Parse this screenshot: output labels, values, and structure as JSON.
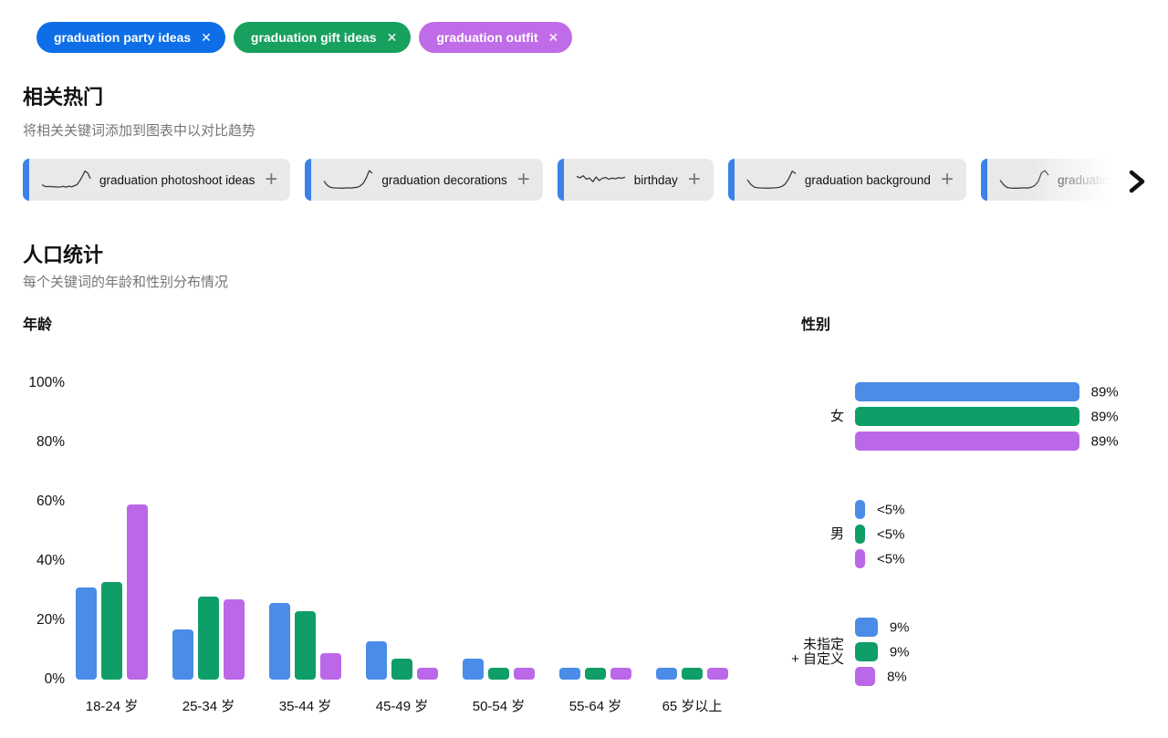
{
  "icons": {
    "close": "✕",
    "add": "+",
    "chevron_right": "chevron-right"
  },
  "colors": {
    "chip_blue": "#0d6ee8",
    "chip_green": "#18a05e",
    "chip_purple": "#c06ce8",
    "series": [
      "#4a8ce8",
      "#0f9e68",
      "#bb68e8"
    ],
    "card_bg": "#e9e9e9",
    "card_strip": "#3b82e8",
    "text_gray": "#767676",
    "sparkline": "#3a3a3a"
  },
  "chips": [
    {
      "label": "graduation party ideas",
      "color": "#0d6ee8"
    },
    {
      "label": "graduation gift ideas",
      "color": "#18a05e"
    },
    {
      "label": "graduation outfit",
      "color": "#c06ce8"
    }
  ],
  "related": {
    "title": "相关热门",
    "subtitle": "将相关关键词添加到图表中以对比趋势",
    "cards": [
      {
        "label": "graduation photoshoot ideas",
        "sparkline": [
          26,
          18,
          16,
          17,
          15,
          16,
          14,
          15,
          18,
          13,
          19,
          15,
          21,
          26,
          45,
          70,
          97,
          88,
          58
        ]
      },
      {
        "label": "graduation decorations",
        "sparkline": [
          45,
          25,
          14,
          10,
          9,
          9,
          8,
          9,
          10,
          9,
          11,
          13,
          20,
          34,
          62,
          100,
          86
        ]
      },
      {
        "label": "birthday",
        "sparkline": [
          70,
          62,
          73,
          55,
          61,
          42,
          66,
          48,
          60,
          64,
          55,
          61,
          57,
          63,
          60,
          65
        ]
      },
      {
        "label": "graduation background",
        "sparkline": [
          52,
          28,
          14,
          10,
          9,
          9,
          8,
          9,
          10,
          12,
          17,
          30,
          58,
          97,
          84
        ]
      },
      {
        "label": "graduation",
        "sparkline": [
          50,
          26,
          12,
          9,
          8,
          8,
          9,
          10,
          9,
          13,
          22,
          42,
          88,
          100,
          76
        ]
      }
    ]
  },
  "demographics": {
    "title": "人口统计",
    "subtitle": "每个关键词的年龄和性别分布情况",
    "age_label": "年龄",
    "gender_label": "性别"
  },
  "chart_data": [
    {
      "type": "bar",
      "title": "年龄",
      "categories": [
        "18-24 岁",
        "25-34 岁",
        "35-44 岁",
        "45-49 岁",
        "50-54 岁",
        "55-64 岁",
        "65 岁以上"
      ],
      "series": [
        {
          "name": "graduation party ideas",
          "color": "#4a8ce8",
          "values": [
            31,
            17,
            26,
            13,
            7,
            4,
            4
          ]
        },
        {
          "name": "graduation gift ideas",
          "color": "#0f9e68",
          "values": [
            33,
            28,
            23,
            7,
            4,
            4,
            4
          ]
        },
        {
          "name": "graduation outfit",
          "color": "#bb68e8",
          "values": [
            59,
            27,
            9,
            4,
            4,
            4,
            4
          ]
        }
      ],
      "yticks": [
        "100%",
        "80%",
        "60%",
        "40%",
        "20%",
        "0%"
      ],
      "ylim": [
        0,
        100
      ],
      "grid": false,
      "unit": "%"
    },
    {
      "type": "bar-horizontal",
      "title": "性别",
      "series_names": [
        "graduation party ideas",
        "graduation gift ideas",
        "graduation outfit"
      ],
      "groups": [
        {
          "label": "女",
          "values": [
            89,
            89,
            89
          ],
          "value_labels": [
            "89%",
            "89%",
            "89%"
          ]
        },
        {
          "label": "男",
          "values": [
            4,
            4,
            4
          ],
          "value_labels": [
            "<5%",
            "<5%",
            "<5%"
          ]
        },
        {
          "label": "未指定\n+ 自定义",
          "values": [
            9,
            9,
            8
          ],
          "value_labels": [
            "9%",
            "9%",
            "8%"
          ]
        }
      ],
      "xmax": 100
    }
  ]
}
